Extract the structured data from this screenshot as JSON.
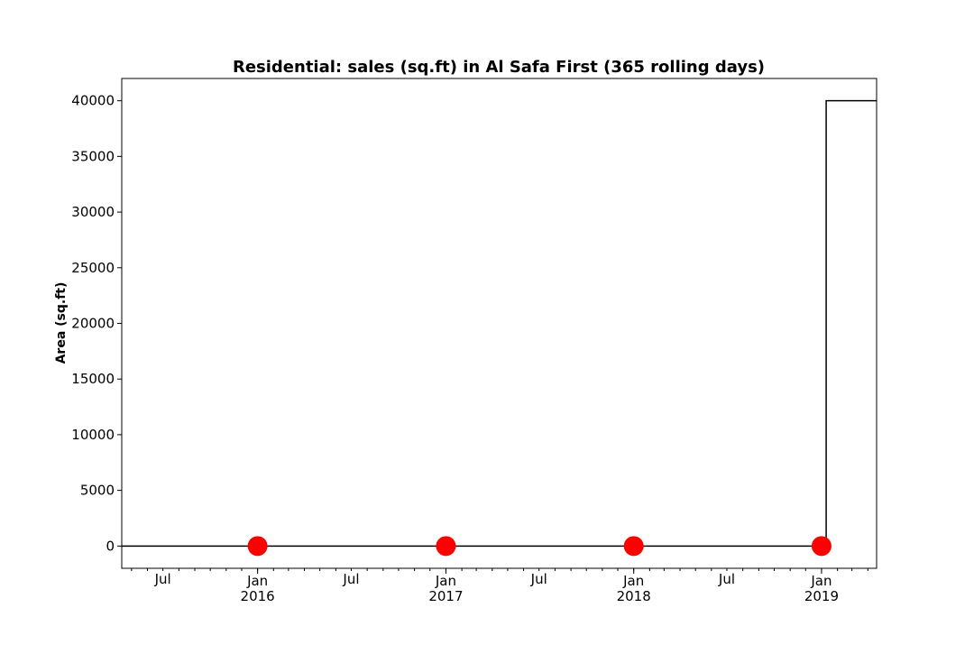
{
  "chart_data": {
    "type": "line",
    "title": "Residential: sales (sq.ft) in Al Safa First (365 rolling days)",
    "xlabel": "",
    "ylabel": "Area (sq.ft)",
    "xlim": [
      "2015-04-12",
      "2019-04-18"
    ],
    "ylim": [
      -2000,
      42000
    ],
    "grid": false,
    "yticks": [
      0,
      5000,
      10000,
      15000,
      20000,
      25000,
      30000,
      35000,
      40000
    ],
    "xticks_major": [
      {
        "date": "2016-01-01",
        "label": "Jan",
        "year": "2016"
      },
      {
        "date": "2017-01-01",
        "label": "Jan",
        "year": "2017"
      },
      {
        "date": "2018-01-01",
        "label": "Jan",
        "year": "2018"
      },
      {
        "date": "2019-01-01",
        "label": "Jan",
        "year": "2019"
      }
    ],
    "xticks_mid": [
      {
        "date": "2015-07-01",
        "label": "Jul"
      },
      {
        "date": "2016-07-01",
        "label": "Jul"
      },
      {
        "date": "2017-07-01",
        "label": "Jul"
      },
      {
        "date": "2018-07-01",
        "label": "Jul"
      }
    ],
    "series": [
      {
        "style": "step",
        "color": "#000000",
        "points": [
          {
            "x": "2015-04-12",
            "y": 0
          },
          {
            "x": "2019-01-10",
            "y": 0
          },
          {
            "x": "2019-01-10",
            "y": 40000
          },
          {
            "x": "2019-04-18",
            "y": 40000
          }
        ]
      },
      {
        "style": "markers",
        "color": "#ff0000",
        "points": [
          {
            "x": "2016-01-01",
            "y": 0
          },
          {
            "x": "2017-01-01",
            "y": 0
          },
          {
            "x": "2018-01-01",
            "y": 0
          },
          {
            "x": "2019-01-01",
            "y": 0
          }
        ]
      }
    ]
  }
}
